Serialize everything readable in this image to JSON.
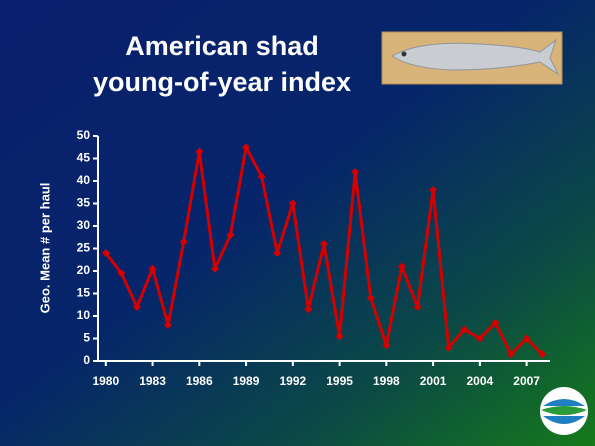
{
  "chart_data": {
    "type": "line",
    "title": [
      "American shad",
      "young-of-year index"
    ],
    "y_label": "Geo. Mean # per haul",
    "x": [
      1980,
      1981,
      1982,
      1983,
      1984,
      1985,
      1986,
      1987,
      1988,
      1989,
      1990,
      1991,
      1992,
      1993,
      1994,
      1995,
      1996,
      1997,
      1998,
      1999,
      2000,
      2001,
      2002,
      2003,
      2004,
      2005,
      2006,
      2007,
      2008
    ],
    "values": [
      24,
      19.5,
      12,
      20.5,
      8,
      26.5,
      46.5,
      20.5,
      28,
      47.5,
      41,
      24,
      35,
      11.5,
      26,
      5.5,
      42,
      14,
      3.5,
      21,
      12,
      38,
      3,
      7,
      5,
      8.5,
      1.5,
      5,
      1.5
    ],
    "color": "#d40000",
    "xlim": [
      1979.5,
      2008.5
    ],
    "xticks": [
      1980,
      1983,
      1986,
      1989,
      1992,
      1995,
      1998,
      2001,
      2004,
      2007
    ],
    "ylim": [
      0,
      50
    ],
    "yticks": [
      0,
      5,
      10,
      15,
      20,
      25,
      30,
      35,
      40,
      45,
      50
    ]
  }
}
